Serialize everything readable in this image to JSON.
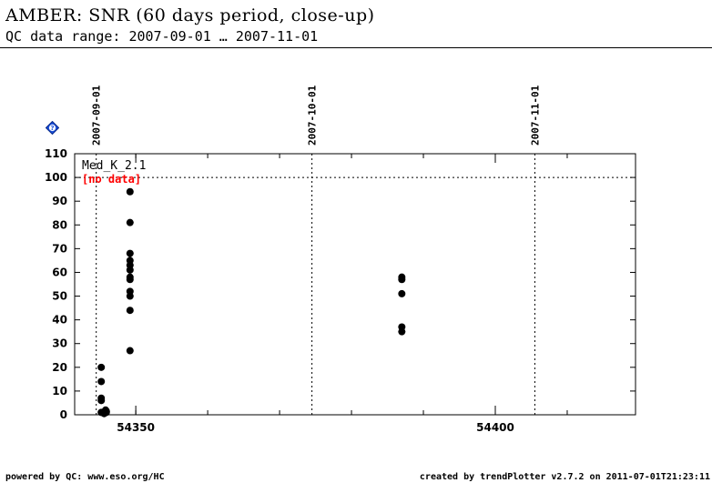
{
  "header": {
    "title": "AMBER: SNR (60 days period, close-up)",
    "subtitle": "QC data range: 2007-09-01 … 2007-11-01"
  },
  "footer": {
    "left": "powered by QC: www.eso.org/HC",
    "right": "created by trendPlotter v2.7.2 on 2011-07-01T21:23:11"
  },
  "chart_data": {
    "type": "scatter",
    "xlim": [
      54341.5,
      54419.5
    ],
    "ylim": [
      0,
      110
    ],
    "yticks": [
      0,
      10,
      20,
      30,
      40,
      50,
      60,
      70,
      80,
      90,
      100,
      110
    ],
    "xticks_labeled": [
      54350,
      54400
    ],
    "xticks_minor": [
      54350,
      54360,
      54370,
      54380,
      54390,
      54400,
      54410
    ],
    "date_markers": [
      {
        "label": "2007-09-01",
        "x": 54344.5
      },
      {
        "label": "2007-10-01",
        "x": 54374.5
      },
      {
        "label": "2007-11-01",
        "x": 54405.5
      }
    ],
    "reference_line": {
      "y": 100,
      "style": "dotted"
    },
    "annotations": [
      {
        "text": "Med_K_2.1",
        "color": "#000000"
      },
      {
        "text": "[no data]",
        "color": "#ff0000"
      }
    ],
    "grid": false,
    "series": [
      {
        "color": "#000000",
        "points": [
          [
            54345.2,
            20
          ],
          [
            54345.2,
            14
          ],
          [
            54345.2,
            7
          ],
          [
            54345.2,
            6
          ],
          [
            54345.2,
            1
          ],
          [
            54345.5,
            1
          ],
          [
            54345.6,
            0.5
          ],
          [
            54345.8,
            2
          ],
          [
            54345.9,
            1.5
          ],
          [
            54345.9,
            1
          ],
          [
            54349.2,
            94
          ],
          [
            54349.2,
            81
          ],
          [
            54349.2,
            68
          ],
          [
            54349.2,
            65
          ],
          [
            54349.2,
            63
          ],
          [
            54349.2,
            61
          ],
          [
            54349.2,
            58
          ],
          [
            54349.2,
            57
          ],
          [
            54349.2,
            52
          ],
          [
            54349.2,
            50
          ],
          [
            54349.2,
            44
          ],
          [
            54349.2,
            27
          ],
          [
            54387.0,
            58
          ],
          [
            54387.0,
            57
          ],
          [
            54387.0,
            51
          ],
          [
            54387.0,
            37
          ],
          [
            54387.0,
            35
          ]
        ]
      }
    ]
  }
}
